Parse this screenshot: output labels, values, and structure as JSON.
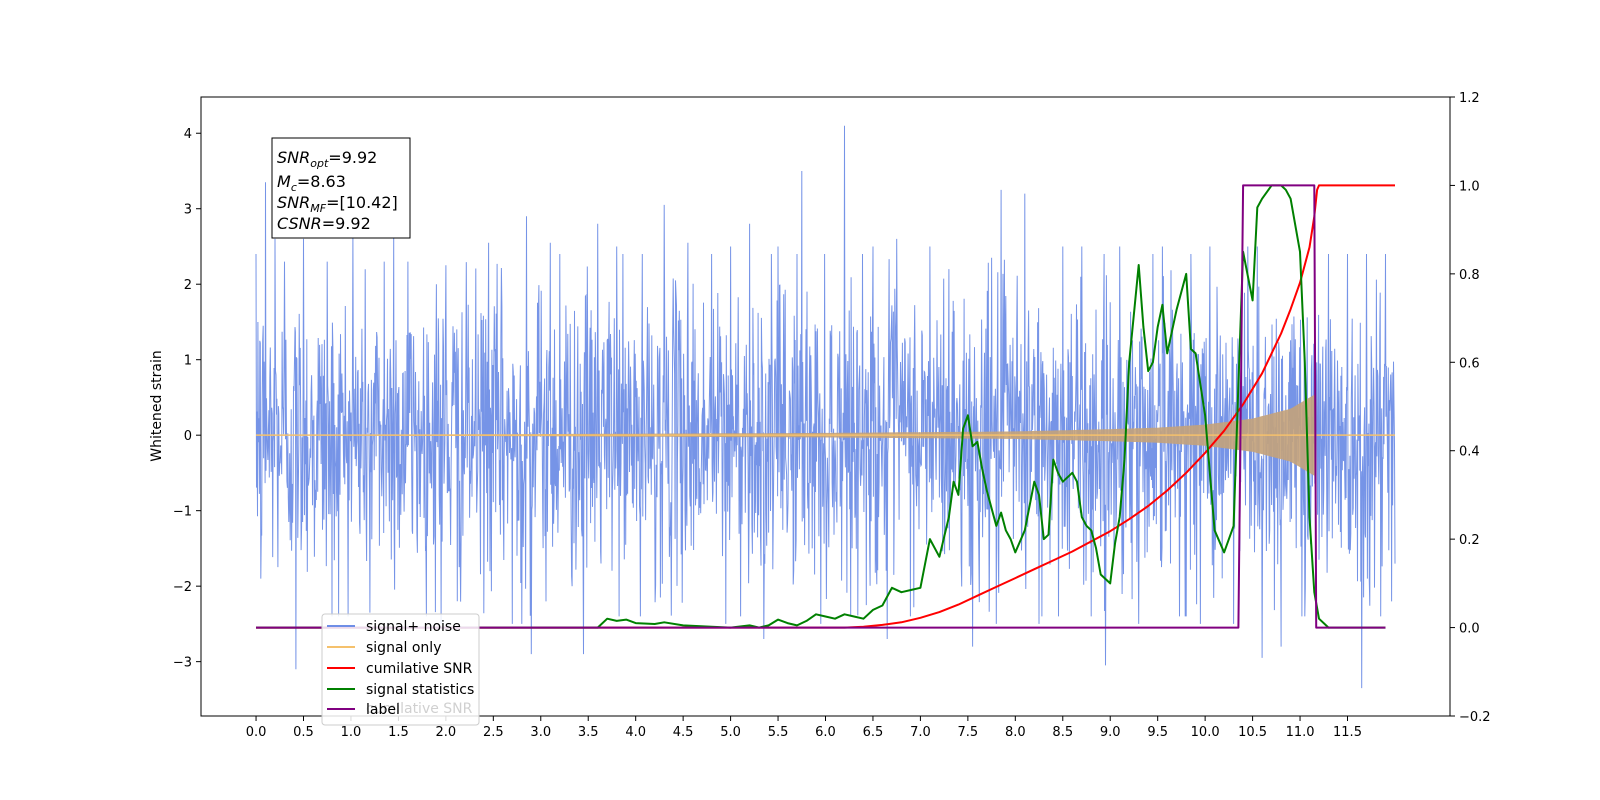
{
  "chart_data": {
    "type": "line",
    "ylabel": "Whitened strain",
    "x_ticks": [
      "0.0",
      "0.5",
      "1.0",
      "1.5",
      "2.0",
      "2.5",
      "3.0",
      "3.5",
      "4.0",
      "4.5",
      "5.0",
      "5.5",
      "6.0",
      "6.5",
      "7.0",
      "7.5",
      "8.0",
      "8.5",
      "9.0",
      "9.5",
      "10.0",
      "10.5",
      "11.0",
      "11.5"
    ],
    "x_tick_values": [
      0,
      0.5,
      1,
      1.5,
      2,
      2.5,
      3,
      3.5,
      4,
      4.5,
      5,
      5.5,
      6,
      6.5,
      7,
      7.5,
      8,
      8.5,
      9,
      9.5,
      10,
      10.5,
      11,
      11.5
    ],
    "xlim": [
      -0.58,
      12.58
    ],
    "ylim_left": [
      -3.72,
      4.48
    ],
    "ylim_right": [
      -0.2,
      1.2
    ],
    "yticks_left": [
      "−3",
      "−2",
      "−1",
      "0",
      "1",
      "2",
      "3",
      "4"
    ],
    "ytick_values_left": [
      -3,
      -2,
      -1,
      0,
      1,
      2,
      3,
      4
    ],
    "yticks_right": [
      "−0.2",
      "0.0",
      "0.2",
      "0.4",
      "0.6",
      "0.8",
      "1.0",
      "1.2"
    ],
    "ytick_values_right": [
      -0.2,
      0,
      0.2,
      0.4,
      0.6,
      0.8,
      1.0,
      1.2
    ],
    "annotation": {
      "snr_opt": {
        "base": "SNR",
        "sub": "opt",
        "value": "=9.92"
      },
      "mc": {
        "base": "M",
        "sub": "c",
        "value": "=8.63"
      },
      "snr_mf": {
        "base": "SNR",
        "sub": "MF",
        "value": "=[10.42]"
      },
      "csnr": {
        "base": "CSNR",
        "value": "=9.92"
      }
    },
    "legend": {
      "items": [
        {
          "label": "signal+ noise",
          "color": "#6f8ee6"
        },
        {
          "label": "signal only",
          "color": "#f5c16c"
        },
        {
          "label": "cumilative SNR",
          "color": "#ff0000"
        },
        {
          "label": "signal statistics",
          "color": "#008000"
        },
        {
          "label": "label",
          "color": "#800080"
        }
      ],
      "ghost_label": "cumilative SNR"
    },
    "series": [
      {
        "name": "signal+ noise",
        "color": "#6f8ee6",
        "axis": "left",
        "x_range": [
          0,
          12
        ],
        "amplitude_sigma": 0.95,
        "peaks": [
          [
            0.02,
            1.5
          ],
          [
            0.05,
            -1.9
          ],
          [
            0.1,
            -2.7
          ],
          [
            0.1,
            3.35
          ],
          [
            0.2,
            2.6
          ],
          [
            0.3,
            2.3
          ],
          [
            0.42,
            -3.1
          ],
          [
            0.5,
            2.6
          ],
          [
            0.75,
            2.3
          ],
          [
            0.8,
            -2.4
          ],
          [
            1.02,
            2.65
          ],
          [
            1.2,
            -2.35
          ],
          [
            1.35,
            2.3
          ],
          [
            1.45,
            2.65
          ],
          [
            1.6,
            2.3
          ],
          [
            1.9,
            2.0
          ],
          [
            1.95,
            -2.5
          ],
          [
            2.0,
            2.25
          ],
          [
            2.12,
            -2.2
          ],
          [
            2.45,
            2.55
          ],
          [
            2.7,
            -2.5
          ],
          [
            2.8,
            -2.5
          ],
          [
            2.85,
            2.9
          ],
          [
            2.9,
            -2.9
          ],
          [
            3.1,
            2.55
          ],
          [
            3.2,
            2.4
          ],
          [
            3.45,
            -2.9
          ],
          [
            3.6,
            2.8
          ],
          [
            3.8,
            2.5
          ],
          [
            4.05,
            -2.4
          ],
          [
            4.3,
            3.05
          ],
          [
            4.55,
            2.55
          ],
          [
            4.8,
            2.4
          ],
          [
            4.95,
            -2.5
          ],
          [
            5.0,
            2.5
          ],
          [
            5.2,
            2.8
          ],
          [
            5.35,
            -2.7
          ],
          [
            5.5,
            2.5
          ],
          [
            5.7,
            2.4
          ],
          [
            5.75,
            3.5
          ],
          [
            5.95,
            -2.5
          ],
          [
            6.2,
            4.1
          ],
          [
            6.5,
            2.5
          ],
          [
            6.65,
            -2.7
          ],
          [
            6.75,
            2.6
          ],
          [
            7.1,
            2.5
          ],
          [
            7.3,
            2.2
          ],
          [
            7.55,
            -2.8
          ],
          [
            7.75,
            2.35
          ],
          [
            7.8,
            -2.5
          ],
          [
            7.85,
            3.25
          ],
          [
            8.1,
            3.2
          ],
          [
            8.25,
            -2.5
          ],
          [
            8.5,
            2.5
          ],
          [
            8.7,
            2.5
          ],
          [
            8.8,
            -2.4
          ],
          [
            8.95,
            -3.05
          ],
          [
            9.1,
            2.5
          ],
          [
            9.3,
            -2.5
          ],
          [
            9.45,
            2.4
          ],
          [
            9.55,
            2.5
          ],
          [
            9.85,
            2.4
          ],
          [
            9.95,
            -2.5
          ],
          [
            10.05,
            2.5
          ],
          [
            10.3,
            -2.5
          ],
          [
            10.45,
            2.5
          ],
          [
            10.55,
            2.5
          ],
          [
            10.6,
            -2.95
          ],
          [
            10.8,
            -2.8
          ],
          [
            11.05,
            -2.4
          ],
          [
            11.3,
            2.4
          ],
          [
            11.5,
            2.4
          ],
          [
            11.65,
            -3.35
          ],
          [
            11.7,
            2.4
          ],
          [
            11.85,
            -2.4
          ],
          [
            11.9,
            2.4
          ]
        ]
      },
      {
        "name": "signal only",
        "color": "#f5c16c",
        "axis": "left",
        "type": "chirp",
        "start": 0,
        "end": 11.17,
        "envelope_points": [
          [
            0,
            0
          ],
          [
            6.0,
            0.03
          ],
          [
            8.0,
            0.05
          ],
          [
            9.0,
            0.08
          ],
          [
            9.5,
            0.1
          ],
          [
            10.0,
            0.14
          ],
          [
            10.5,
            0.22
          ],
          [
            10.9,
            0.35
          ],
          [
            11.1,
            0.5
          ],
          [
            11.17,
            0.55
          ]
        ]
      },
      {
        "name": "cumilative SNR",
        "color": "#ff0000",
        "axis": "right",
        "x": [
          0,
          6.2,
          6.4,
          6.6,
          6.8,
          7.0,
          7.2,
          7.4,
          7.6,
          7.8,
          8.0,
          8.2,
          8.4,
          8.6,
          8.8,
          9.0,
          9.2,
          9.4,
          9.6,
          9.8,
          10.0,
          10.2,
          10.4,
          10.6,
          10.8,
          10.9,
          11.0,
          11.1,
          11.15,
          11.18,
          11.2,
          12.0
        ],
        "y": [
          0,
          0,
          0.002,
          0.006,
          0.012,
          0.022,
          0.035,
          0.052,
          0.072,
          0.092,
          0.112,
          0.132,
          0.152,
          0.172,
          0.195,
          0.218,
          0.245,
          0.275,
          0.31,
          0.35,
          0.395,
          0.445,
          0.505,
          0.575,
          0.665,
          0.72,
          0.78,
          0.86,
          0.93,
          0.99,
          1.0,
          1.0
        ]
      },
      {
        "name": "signal statistics",
        "color": "#008000",
        "axis": "right",
        "x": [
          0,
          3.6,
          3.7,
          3.8,
          3.9,
          4.0,
          4.2,
          4.3,
          4.5,
          4.8,
          5.0,
          5.2,
          5.3,
          5.4,
          5.5,
          5.6,
          5.7,
          5.8,
          5.9,
          6.0,
          6.1,
          6.2,
          6.3,
          6.4,
          6.5,
          6.6,
          6.7,
          6.8,
          6.9,
          7.0,
          7.1,
          7.2,
          7.3,
          7.35,
          7.4,
          7.45,
          7.5,
          7.55,
          7.6,
          7.65,
          7.7,
          7.8,
          7.85,
          7.9,
          7.95,
          8.0,
          8.1,
          8.2,
          8.25,
          8.3,
          8.35,
          8.4,
          8.45,
          8.5,
          8.6,
          8.65,
          8.7,
          8.75,
          8.8,
          8.85,
          8.9,
          9.0,
          9.05,
          9.1,
          9.15,
          9.2,
          9.3,
          9.35,
          9.4,
          9.45,
          9.5,
          9.55,
          9.6,
          9.7,
          9.8,
          9.85,
          9.9,
          10.0,
          10.1,
          10.2,
          10.3,
          10.35,
          10.4,
          10.5,
          10.55,
          10.6,
          10.7,
          10.8,
          10.85,
          10.9,
          11.0,
          11.05,
          11.1,
          11.15,
          11.2,
          11.3,
          11.4,
          11.5,
          11.9
        ],
        "y": [
          0,
          0,
          0.02,
          0.015,
          0.018,
          0.01,
          0.008,
          0.012,
          0.005,
          0.002,
          0.0,
          0.005,
          0.0,
          0.005,
          0.018,
          0.01,
          0.005,
          0.015,
          0.03,
          0.025,
          0.02,
          0.03,
          0.025,
          0.02,
          0.04,
          0.05,
          0.09,
          0.08,
          0.085,
          0.09,
          0.2,
          0.16,
          0.25,
          0.33,
          0.3,
          0.45,
          0.48,
          0.41,
          0.42,
          0.36,
          0.31,
          0.23,
          0.26,
          0.22,
          0.2,
          0.17,
          0.22,
          0.33,
          0.3,
          0.2,
          0.21,
          0.38,
          0.35,
          0.33,
          0.35,
          0.33,
          0.25,
          0.23,
          0.22,
          0.18,
          0.12,
          0.1,
          0.19,
          0.25,
          0.38,
          0.6,
          0.82,
          0.68,
          0.58,
          0.6,
          0.68,
          0.73,
          0.62,
          0.72,
          0.8,
          0.63,
          0.62,
          0.48,
          0.22,
          0.17,
          0.23,
          0.55,
          0.85,
          0.74,
          0.95,
          0.97,
          1.0,
          1.0,
          0.99,
          0.97,
          0.85,
          0.6,
          0.25,
          0.08,
          0.02,
          0.0,
          0.0,
          0.0,
          0.0
        ]
      },
      {
        "name": "label",
        "color": "#800080",
        "axis": "right",
        "x": [
          0,
          10.35,
          10.4,
          11.15,
          11.17,
          11.9
        ],
        "y": [
          0,
          0,
          1,
          1,
          0,
          0
        ]
      }
    ]
  }
}
